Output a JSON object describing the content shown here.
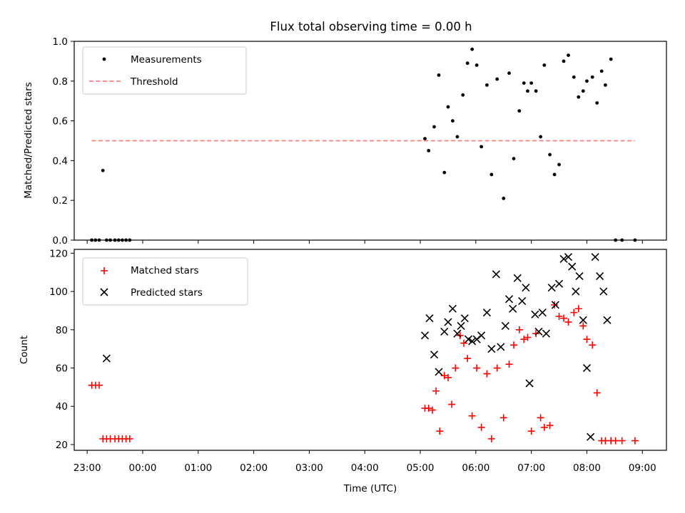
{
  "chart_data": [
    {
      "type": "scatter",
      "title": "Flux total observing time = 0.00 h",
      "xlabel": "",
      "ylabel": "Matched/Predicted stars",
      "ylim": [
        0.0,
        1.0
      ],
      "yticks": [
        "0.0",
        "0.2",
        "0.4",
        "0.6",
        "0.8",
        "1.0"
      ],
      "xlim": [
        "22:46",
        "09:26"
      ],
      "grid": false,
      "legend": "top-left",
      "series": [
        {
          "name": "Measurements",
          "marker": "dot",
          "color": "#000000",
          "x": [
            "23:05",
            "23:09",
            "23:13",
            "23:17",
            "23:21",
            "23:25",
            "23:30",
            "23:34",
            "23:38",
            "23:42",
            "23:46",
            "05:05",
            "05:09",
            "05:15",
            "05:20",
            "05:26",
            "05:30",
            "05:35",
            "05:40",
            "05:46",
            "05:51",
            "05:56",
            "06:01",
            "06:06",
            "06:12",
            "06:17",
            "06:23",
            "06:30",
            "06:36",
            "06:41",
            "06:47",
            "06:52",
            "06:56",
            "07:00",
            "07:05",
            "07:10",
            "07:14",
            "07:20",
            "07:25",
            "07:30",
            "07:35",
            "07:40",
            "07:46",
            "07:51",
            "07:56",
            "08:00",
            "08:06",
            "08:11",
            "08:16",
            "08:20",
            "08:26",
            "08:31",
            "08:38",
            "08:52"
          ],
          "y": [
            0.0,
            0.0,
            0.0,
            0.35,
            0.0,
            0.0,
            0.0,
            0.0,
            0.0,
            0.0,
            0.0,
            0.51,
            0.45,
            0.57,
            0.83,
            0.34,
            0.67,
            0.6,
            0.52,
            0.73,
            0.89,
            0.96,
            0.88,
            0.47,
            0.78,
            0.33,
            0.81,
            0.21,
            0.84,
            0.41,
            0.65,
            0.79,
            0.75,
            0.79,
            0.75,
            0.52,
            0.88,
            0.43,
            0.33,
            0.38,
            0.9,
            0.93,
            0.82,
            0.72,
            0.75,
            0.8,
            0.82,
            0.69,
            0.85,
            0.78,
            0.91,
            0.0,
            0.0,
            0.0
          ]
        },
        {
          "name": "Threshold",
          "marker": "dashed-line",
          "color": "#ff7f7f",
          "x": [
            "23:05",
            "08:52"
          ],
          "y": [
            0.5,
            0.5
          ]
        }
      ]
    },
    {
      "type": "scatter",
      "title": "",
      "xlabel": "Time (UTC)",
      "ylabel": "Count",
      "ylim": [
        17,
        122
      ],
      "yticks": [
        "20",
        "40",
        "60",
        "80",
        "100",
        "120"
      ],
      "xlim": [
        "22:46",
        "09:26"
      ],
      "xticks": [
        "23:00",
        "00:00",
        "01:00",
        "02:00",
        "03:00",
        "04:00",
        "05:00",
        "06:00",
        "07:00",
        "08:00",
        "09:00"
      ],
      "grid": false,
      "legend": "top-left",
      "series": [
        {
          "name": "Matched stars",
          "marker": "plus",
          "color": "#ff0000",
          "x": [
            "23:05",
            "23:09",
            "23:13",
            "23:17",
            "23:21",
            "23:25",
            "23:30",
            "23:34",
            "23:38",
            "23:42",
            "23:46",
            "05:05",
            "05:09",
            "05:13",
            "05:17",
            "05:21",
            "05:26",
            "05:30",
            "05:34",
            "05:38",
            "05:43",
            "05:47",
            "05:51",
            "05:56",
            "06:01",
            "06:06",
            "06:12",
            "06:17",
            "06:23",
            "06:30",
            "06:36",
            "06:41",
            "06:47",
            "06:52",
            "06:56",
            "07:00",
            "07:05",
            "07:10",
            "07:14",
            "07:20",
            "07:25",
            "07:30",
            "07:35",
            "07:40",
            "07:46",
            "07:51",
            "07:56",
            "08:00",
            "08:06",
            "08:11",
            "08:16",
            "08:20",
            "08:26",
            "08:31",
            "08:38",
            "08:52"
          ],
          "y": [
            51,
            51,
            51,
            23,
            23,
            23,
            23,
            23,
            23,
            23,
            23,
            39,
            39,
            38,
            48,
            27,
            56,
            55,
            41,
            60,
            77,
            73,
            65,
            35,
            60,
            29,
            57,
            23,
            60,
            34,
            62,
            72,
            80,
            75,
            76,
            27,
            78,
            34,
            29,
            30,
            93,
            87,
            86,
            84,
            89,
            91,
            82,
            75,
            72,
            47,
            22,
            22,
            22,
            22,
            22,
            22
          ]
        },
        {
          "name": "Predicted stars",
          "marker": "cross",
          "color": "#000000",
          "x": [
            "23:21",
            "05:05",
            "05:10",
            "05:15",
            "05:20",
            "05:26",
            "05:30",
            "05:35",
            "05:40",
            "05:44",
            "05:48",
            "05:52",
            "05:56",
            "06:01",
            "06:06",
            "06:12",
            "06:17",
            "06:22",
            "06:27",
            "06:32",
            "06:36",
            "06:40",
            "06:45",
            "06:50",
            "06:54",
            "06:58",
            "07:04",
            "07:08",
            "07:12",
            "07:16",
            "07:22",
            "07:26",
            "07:30",
            "07:35",
            "07:40",
            "07:44",
            "07:48",
            "07:52",
            "07:56",
            "08:00",
            "08:04",
            "08:09",
            "08:14",
            "08:18",
            "08:22"
          ],
          "y": [
            65,
            77,
            86,
            67,
            58,
            79,
            84,
            91,
            78,
            82,
            86,
            75,
            74,
            75,
            77,
            89,
            70,
            109,
            71,
            82,
            96,
            91,
            107,
            95,
            102,
            52,
            88,
            79,
            89,
            78,
            102,
            93,
            104,
            117,
            118,
            113,
            100,
            108,
            85,
            60,
            24,
            118,
            108,
            100,
            85
          ]
        }
      ]
    }
  ]
}
